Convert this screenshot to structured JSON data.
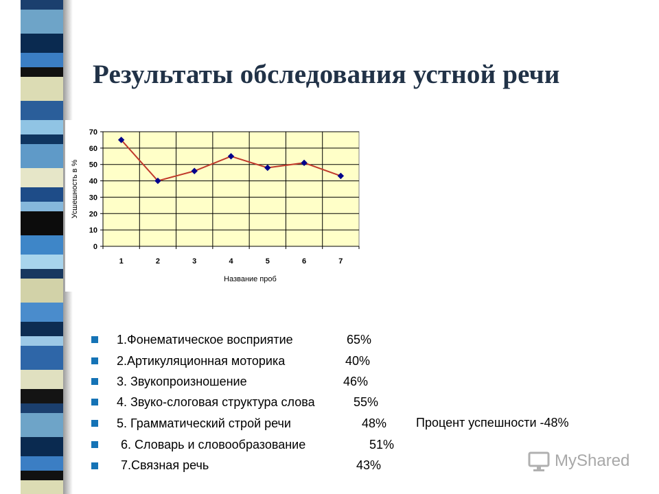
{
  "title": "Результаты обследования устной речи",
  "chart_data": {
    "type": "line",
    "categories": [
      "1",
      "2",
      "3",
      "4",
      "5",
      "6",
      "7"
    ],
    "series": [
      {
        "values": [
          65,
          40,
          46,
          55,
          48,
          51,
          43
        ],
        "color": "#c0392b",
        "marker_color": "#00008b"
      }
    ],
    "ylim": [
      0,
      70
    ],
    "yticks": [
      0,
      10,
      20,
      30,
      40,
      50,
      60,
      70
    ],
    "xlabel": "Название проб",
    "ylabel": "Усшешность в %",
    "grid": true,
    "plot_bg": "#ffffc8"
  },
  "items": [
    {
      "label": "1.Фонематическое восприятие",
      "value": "65%"
    },
    {
      "label": "2.Артикуляционная моторика",
      "value": "40%"
    },
    {
      "label": "3. Звукопроизношение",
      "value": "46%"
    },
    {
      "label": "4. Звуко-слоговая структура слова",
      "value": "55%"
    },
    {
      "label": "5. Грамматический строй речи",
      "value": "48%"
    },
    {
      "label": "6. Словарь и словообразование",
      "value": "51%"
    },
    {
      "label": "7.Связная речь",
      "value": "43%"
    }
  ],
  "note": "Процент успешности -48%",
  "watermark": "MyShared",
  "colors": {
    "title": "#213247",
    "bullet": "#1573b6"
  }
}
